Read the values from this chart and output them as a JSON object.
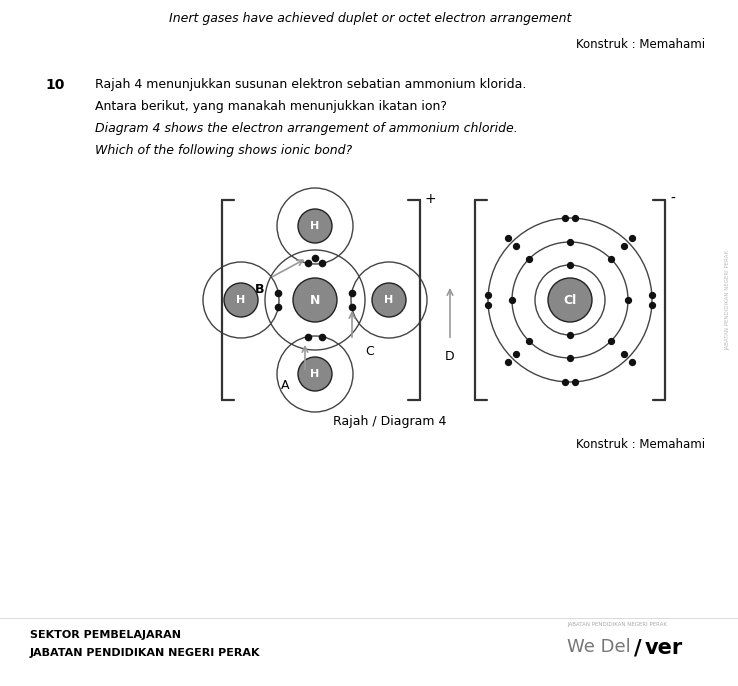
{
  "title_italic": "Inert gases have achieved duplet or octet electron arrangement",
  "konstruk_text": "Konstruk : Memahami",
  "q_number": "10",
  "q_text_ms": "Rajah 4 menunjukkan susunan elektron sebatian ammonium klorida.",
  "q_text_ms2": "Antara berikut, yang manakah menunjukkan ikatan ion?",
  "q_text_en1": "Diagram 4 shows the electron arrangement of ammonium chloride.",
  "q_text_en2": "Which of the following shows ionic bond?",
  "diagram_label": "Rajah / Diagram 4",
  "konstruk_text2": "Konstruk : Memahami",
  "footer1": "SEKTOR PEMBELAJARAN",
  "footer2": "JABATAN PENDIDIKAN NEGERI PERAK",
  "bg_color": "#ffffff",
  "atom_fill": "#888888",
  "atom_edge": "#222222",
  "electron_color": "#111111",
  "orbit_color": "#444444",
  "bracket_color": "#333333",
  "arrow_color": "#999999",
  "label_color": "#000000",
  "side_text": "JABATAN PENDIDIKAN NEGERI PERAK"
}
